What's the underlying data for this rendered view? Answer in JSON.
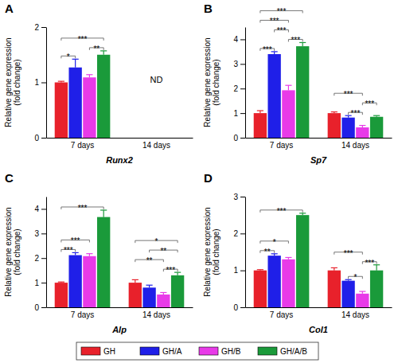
{
  "chart_data": [
    {
      "type": "bar",
      "title": "A",
      "xlabel": "Runx2",
      "ylabel": "Relative gene expression (fold change)",
      "categories": [
        "7 days",
        "14 days"
      ],
      "series": [
        {
          "name": "GH",
          "color": "#e8212b",
          "values": [
            1.0,
            null
          ],
          "errors": [
            0.02,
            null
          ]
        },
        {
          "name": "GH/A",
          "color": "#1f1fe8",
          "values": [
            1.27,
            null
          ],
          "errors": [
            0.15,
            null
          ]
        },
        {
          "name": "GH/B",
          "color": "#e83ae8",
          "values": [
            1.09,
            null
          ],
          "errors": [
            0.05,
            null
          ]
        },
        {
          "name": "GH/A/B",
          "color": "#1a9a3a",
          "values": [
            1.5,
            null
          ],
          "errors": [
            0.07,
            null
          ]
        }
      ],
      "ylim": [
        0,
        2
      ],
      "yticks": [
        0,
        1,
        2
      ],
      "legend": "bottom",
      "annotations": [
        {
          "text": "*",
          "category": "7 days",
          "from": "GH",
          "to": "GH/A"
        },
        {
          "text": "**",
          "category": "7 days",
          "from": "GH/B",
          "to": "GH/A/B"
        },
        {
          "text": "***",
          "category": "7 days",
          "from": "GH",
          "to": "GH/A/B"
        },
        {
          "text": "ND",
          "category": "14 days"
        }
      ]
    },
    {
      "type": "bar",
      "title": "B",
      "xlabel": "Sp7",
      "ylabel": "Relative gene expression (fold change)",
      "categories": [
        "7 days",
        "14 days"
      ],
      "series": [
        {
          "name": "GH",
          "color": "#e8212b",
          "values": [
            1.0,
            1.0
          ],
          "errors": [
            0.1,
            0.05
          ]
        },
        {
          "name": "GH/A",
          "color": "#1f1fe8",
          "values": [
            3.4,
            0.82
          ],
          "errors": [
            0.1,
            0.08
          ]
        },
        {
          "name": "GH/B",
          "color": "#e83ae8",
          "values": [
            1.93,
            0.42
          ],
          "errors": [
            0.2,
            0.08
          ]
        },
        {
          "name": "GH/A/B",
          "color": "#1a9a3a",
          "values": [
            3.72,
            0.85
          ],
          "errors": [
            0.15,
            0.05
          ]
        }
      ],
      "ylim": [
        0,
        4.5
      ],
      "yticks": [
        0,
        1,
        2,
        3,
        4
      ],
      "annotations": [
        {
          "text": "***",
          "category": "7 days",
          "from": "GH",
          "to": "GH/A"
        },
        {
          "text": "***",
          "category": "7 days",
          "from": "GH/B",
          "to": "GH/A/B"
        },
        {
          "text": "***",
          "category": "7 days",
          "from": "GH/A",
          "to": "GH/B"
        },
        {
          "text": "***",
          "category": "7 days",
          "from": "GH",
          "to": "GH/B"
        },
        {
          "text": "***",
          "category": "7 days",
          "from": "GH",
          "to": "GH/A/B"
        },
        {
          "text": "***",
          "category": "14 days",
          "from": "GH/A",
          "to": "GH/B"
        },
        {
          "text": "***",
          "category": "14 days",
          "from": "GH/B",
          "to": "GH/A/B"
        },
        {
          "text": "***",
          "category": "14 days",
          "from": "GH",
          "to": "GH/B"
        }
      ]
    },
    {
      "type": "bar",
      "title": "C",
      "xlabel": "Alp",
      "ylabel": "Relative gene expression (fold change)",
      "categories": [
        "7 days",
        "14 days"
      ],
      "series": [
        {
          "name": "GH",
          "color": "#e8212b",
          "values": [
            1.0,
            1.0
          ],
          "errors": [
            0.03,
            0.12
          ]
        },
        {
          "name": "GH/A",
          "color": "#1f1fe8",
          "values": [
            2.12,
            0.8
          ],
          "errors": [
            0.1,
            0.1
          ]
        },
        {
          "name": "GH/B",
          "color": "#e83ae8",
          "values": [
            2.08,
            0.52
          ],
          "errors": [
            0.1,
            0.08
          ]
        },
        {
          "name": "GH/A/B",
          "color": "#1a9a3a",
          "values": [
            3.67,
            1.3
          ],
          "errors": [
            0.28,
            0.12
          ]
        }
      ],
      "ylim": [
        0,
        4.5
      ],
      "yticks": [
        0,
        1,
        2,
        3,
        4
      ],
      "annotations": [
        {
          "text": "***",
          "category": "7 days",
          "from": "GH",
          "to": "GH/A"
        },
        {
          "text": "***",
          "category": "7 days",
          "from": "GH",
          "to": "GH/B"
        },
        {
          "text": "***",
          "category": "7 days",
          "from": "GH",
          "to": "GH/A/B"
        },
        {
          "text": "***",
          "category": "14 days",
          "from": "GH/B",
          "to": "GH/A/B"
        },
        {
          "text": "**",
          "category": "14 days",
          "from": "GH",
          "to": "GH/B"
        },
        {
          "text": "**",
          "category": "14 days",
          "from": "GH/A",
          "to": "GH/A/B"
        },
        {
          "text": "*",
          "category": "14 days",
          "from": "GH",
          "to": "GH/A/B"
        }
      ]
    },
    {
      "type": "bar",
      "title": "D",
      "xlabel": "Col1",
      "ylabel": "Relative gene expression (fold change)",
      "categories": [
        "7 days",
        "14 days"
      ],
      "series": [
        {
          "name": "GH",
          "color": "#e8212b",
          "values": [
            1.0,
            1.0
          ],
          "errors": [
            0.02,
            0.07
          ]
        },
        {
          "name": "GH/A",
          "color": "#1f1fe8",
          "values": [
            1.4,
            0.72
          ],
          "errors": [
            0.05,
            0.03
          ]
        },
        {
          "name": "GH/B",
          "color": "#e83ae8",
          "values": [
            1.3,
            0.37
          ],
          "errors": [
            0.05,
            0.06
          ]
        },
        {
          "name": "GH/A/B",
          "color": "#1a9a3a",
          "values": [
            2.5,
            1.0
          ],
          "errors": [
            0.05,
            0.15
          ]
        }
      ],
      "ylim": [
        0,
        3
      ],
      "yticks": [
        0,
        1,
        2,
        3
      ],
      "annotations": [
        {
          "text": "**",
          "category": "7 days",
          "from": "GH",
          "to": "GH/A"
        },
        {
          "text": "*",
          "category": "7 days",
          "from": "GH",
          "to": "GH/B"
        },
        {
          "text": "***",
          "category": "7 days",
          "from": "GH",
          "to": "GH/A/B"
        },
        {
          "text": "*",
          "category": "14 days",
          "from": "GH/A",
          "to": "GH/B"
        },
        {
          "text": "***",
          "category": "14 days",
          "from": "GH/B",
          "to": "GH/A/B"
        },
        {
          "text": "***",
          "category": "14 days",
          "from": "GH",
          "to": "GH/B"
        }
      ]
    }
  ]
}
